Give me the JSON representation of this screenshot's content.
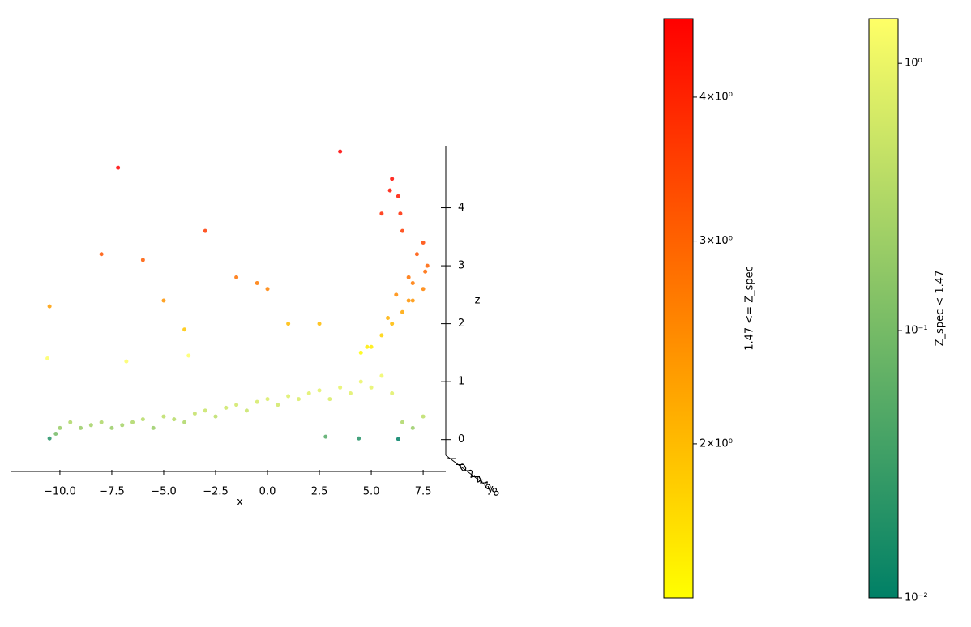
{
  "chart_data": {
    "type": "scatter3d",
    "x_label": "x",
    "y_label": "y",
    "z_label": "z",
    "xlim": [
      -12.34,
      8.59
    ],
    "xticks": [
      {
        "value": -10,
        "label": "−10.0"
      },
      {
        "value": -7.5,
        "label": "−7.5"
      },
      {
        "value": -5,
        "label": "−5.0"
      },
      {
        "value": -2.5,
        "label": "−2.5"
      },
      {
        "value": 0,
        "label": "0.0"
      },
      {
        "value": 2.5,
        "label": "2.5"
      },
      {
        "value": 5,
        "label": "5.0"
      },
      {
        "value": 7.5,
        "label": "7.5"
      }
    ],
    "ylim": [
      0,
      8
    ],
    "yticks": [
      0,
      2,
      4,
      6,
      8
    ],
    "zlim": [
      -0.27,
      5.07
    ],
    "zticks": [
      0,
      1,
      2,
      3,
      4
    ],
    "series": [
      {
        "colorbar": 1,
        "x": [
          -10.5,
          -10.2,
          -10,
          -9.5,
          -9,
          -8.5,
          -8,
          -7.5,
          -7,
          -6.5,
          -6,
          -5.5,
          -5,
          -4.5,
          -4,
          -3.5,
          -3,
          -2.5,
          -2,
          -1.5,
          -1,
          -0.5,
          0,
          0.5,
          1,
          1.5,
          2,
          2.5,
          3,
          3.5,
          4,
          4.5,
          5,
          5.5,
          6,
          6.5,
          7,
          7.5,
          6.3,
          4.4,
          -10.6,
          -6.8,
          -3.8,
          2.8
        ],
        "values": [
          0.02,
          0.1,
          0.2,
          0.3,
          0.2,
          0.25,
          0.3,
          0.2,
          0.25,
          0.3,
          0.35,
          0.2,
          0.4,
          0.35,
          0.3,
          0.45,
          0.5,
          0.4,
          0.55,
          0.6,
          0.5,
          0.65,
          0.7,
          0.6,
          0.75,
          0.7,
          0.8,
          0.85,
          0.7,
          0.9,
          0.8,
          1.0,
          0.9,
          1.1,
          0.8,
          0.3,
          0.2,
          0.4,
          0.01,
          0.02,
          1.4,
          1.35,
          1.45,
          0.05
        ]
      },
      {
        "colorbar": 0,
        "x": [
          4.5,
          5,
          5.5,
          6,
          6.5,
          7,
          7.5,
          7.7,
          6.8,
          6.2,
          5.8,
          7.2,
          7.5,
          6.5,
          6,
          6.3,
          6.4,
          5.9,
          5.5,
          3.5,
          -7.2,
          -3,
          -1.5,
          -0.5,
          0,
          1,
          2.5,
          -6,
          -8,
          -4,
          -5,
          -10.5,
          7.6,
          7,
          6.8,
          4.8
        ],
        "values": [
          1.5,
          1.6,
          1.8,
          2.0,
          2.2,
          2.4,
          2.6,
          3.0,
          2.8,
          2.5,
          2.1,
          3.2,
          3.4,
          3.6,
          4.5,
          4.2,
          3.9,
          4.3,
          3.9,
          4.97,
          4.69,
          3.6,
          2.8,
          2.7,
          2.6,
          2.0,
          2.0,
          3.1,
          3.2,
          1.9,
          2.4,
          2.3,
          2.9,
          2.7,
          2.4,
          1.6
        ]
      }
    ],
    "colorbars": [
      {
        "label": "1.47 <= Z_spec",
        "scale": "log",
        "lim": [
          1.47,
          4.68
        ],
        "colors": [
          "#ffff00",
          "#ff0000"
        ],
        "ticks": [
          {
            "value": 2,
            "label": "2×10⁰"
          },
          {
            "value": 3,
            "label": "3×10⁰"
          },
          {
            "value": 4,
            "label": "4×10⁰"
          }
        ]
      },
      {
        "label": "Z_spec < 1.47",
        "scale": "log",
        "lim": [
          0.01,
          1.47
        ],
        "colors": [
          "#008066",
          "#ffff66"
        ],
        "ticks": [
          {
            "value": 0.01,
            "label": "10⁻²"
          },
          {
            "value": 0.1,
            "label": "10⁻¹"
          },
          {
            "value": 1,
            "label": "10⁰"
          }
        ]
      }
    ]
  }
}
